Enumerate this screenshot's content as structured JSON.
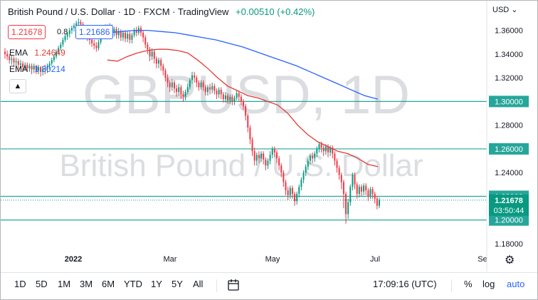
{
  "header": {
    "title": "British Pound / U.S. Dollar · 1D · FXCM · TradingView",
    "change": "+0.00510 (+0.42%)",
    "bid": "1.21678",
    "spread": "0.8",
    "ask": "1.21686",
    "currency_menu": "USD"
  },
  "indicators": [
    {
      "label": "EMA",
      "value": "1.24649",
      "color": "#e53935"
    },
    {
      "label": "EMA",
      "value": "1.30214",
      "color": "#2962ff"
    }
  ],
  "watermark": {
    "symbol": "GBPUSD, 1D",
    "description": "British Pound / U.S. Dollar"
  },
  "chart_data": {
    "type": "candlestick",
    "y_ticks": [
      1.36,
      1.34,
      1.32,
      1.3,
      1.28,
      1.26,
      1.24,
      1.22,
      1.2,
      1.18
    ],
    "ylim": [
      1.177,
      1.385
    ],
    "x_ticks": [
      "2022",
      "Mar",
      "May",
      "Jul",
      "Se"
    ],
    "horizontal_levels": [
      1.3,
      1.26,
      1.22,
      1.2
    ],
    "current_price": "1.21678",
    "countdown": "03:50:44",
    "ema_red": [
      1.335,
      1.334,
      1.338,
      1.341,
      1.343,
      1.344,
      1.344,
      1.343,
      1.341,
      1.335,
      1.328,
      1.32,
      1.313,
      1.309,
      1.305,
      1.303,
      1.3,
      1.297,
      1.29,
      1.28,
      1.272,
      1.266,
      1.262,
      1.258,
      1.256,
      1.252,
      1.247,
      1.245
    ],
    "ema_blue": [
      1.358,
      1.359,
      1.36,
      1.36,
      1.359,
      1.358,
      1.356,
      1.354,
      1.352,
      1.349,
      1.346,
      1.342,
      1.338,
      1.334,
      1.33,
      1.325,
      1.32,
      1.315,
      1.31,
      1.305,
      1.302
    ],
    "candles": [
      [
        1.342,
        1.34,
        1.345,
        1.336
      ],
      [
        1.34,
        1.338,
        1.343,
        1.335
      ],
      [
        1.338,
        1.335,
        1.34,
        1.332
      ],
      [
        1.335,
        1.336,
        1.339,
        1.331
      ],
      [
        1.336,
        1.333,
        1.338,
        1.329
      ],
      [
        1.333,
        1.334,
        1.337,
        1.33
      ],
      [
        1.334,
        1.331,
        1.336,
        1.327
      ],
      [
        1.331,
        1.332,
        1.335,
        1.328
      ],
      [
        1.332,
        1.329,
        1.334,
        1.325
      ],
      [
        1.329,
        1.331,
        1.333,
        1.326
      ],
      [
        1.331,
        1.328,
        1.333,
        1.325
      ],
      [
        1.328,
        1.33,
        1.332,
        1.325
      ],
      [
        1.33,
        1.327,
        1.332,
        1.323
      ],
      [
        1.327,
        1.33,
        1.332,
        1.324
      ],
      [
        1.33,
        1.326,
        1.331,
        1.323
      ],
      [
        1.326,
        1.329,
        1.331,
        1.323
      ],
      [
        1.329,
        1.325,
        1.33,
        1.321
      ],
      [
        1.325,
        1.328,
        1.33,
        1.322
      ],
      [
        1.328,
        1.327,
        1.331,
        1.323
      ],
      [
        1.327,
        1.33,
        1.332,
        1.324
      ],
      [
        1.33,
        1.332,
        1.334,
        1.327
      ],
      [
        1.332,
        1.335,
        1.337,
        1.33
      ],
      [
        1.335,
        1.338,
        1.34,
        1.333
      ],
      [
        1.338,
        1.342,
        1.344,
        1.336
      ],
      [
        1.342,
        1.345,
        1.347,
        1.34
      ],
      [
        1.345,
        1.348,
        1.35,
        1.343
      ],
      [
        1.348,
        1.352,
        1.354,
        1.346
      ],
      [
        1.352,
        1.355,
        1.357,
        1.35
      ],
      [
        1.355,
        1.357,
        1.359,
        1.352
      ],
      [
        1.357,
        1.36,
        1.362,
        1.354
      ],
      [
        1.36,
        1.362,
        1.364,
        1.357
      ],
      [
        1.362,
        1.364,
        1.366,
        1.359
      ],
      [
        1.364,
        1.366,
        1.368,
        1.361
      ],
      [
        1.366,
        1.367,
        1.37,
        1.362
      ],
      [
        1.367,
        1.365,
        1.369,
        1.361
      ],
      [
        1.365,
        1.362,
        1.367,
        1.358
      ],
      [
        1.362,
        1.358,
        1.364,
        1.354
      ],
      [
        1.358,
        1.355,
        1.36,
        1.351
      ],
      [
        1.355,
        1.352,
        1.357,
        1.348
      ],
      [
        1.352,
        1.349,
        1.355,
        1.346
      ],
      [
        1.349,
        1.347,
        1.352,
        1.344
      ],
      [
        1.347,
        1.345,
        1.35,
        1.342
      ],
      [
        1.345,
        1.35,
        1.352,
        1.343
      ],
      [
        1.35,
        1.355,
        1.357,
        1.348
      ],
      [
        1.355,
        1.36,
        1.362,
        1.353
      ],
      [
        1.36,
        1.362,
        1.365,
        1.357
      ],
      [
        1.362,
        1.36,
        1.365,
        1.356
      ],
      [
        1.36,
        1.363,
        1.366,
        1.357
      ],
      [
        1.363,
        1.358,
        1.365,
        1.355
      ],
      [
        1.358,
        1.361,
        1.363,
        1.355
      ],
      [
        1.361,
        1.356,
        1.363,
        1.353
      ],
      [
        1.356,
        1.359,
        1.362,
        1.353
      ],
      [
        1.359,
        1.354,
        1.361,
        1.351
      ],
      [
        1.354,
        1.358,
        1.36,
        1.351
      ],
      [
        1.358,
        1.353,
        1.36,
        1.35
      ],
      [
        1.353,
        1.357,
        1.359,
        1.35
      ],
      [
        1.357,
        1.352,
        1.359,
        1.349
      ],
      [
        1.352,
        1.356,
        1.358,
        1.349
      ],
      [
        1.356,
        1.36,
        1.362,
        1.354
      ],
      [
        1.36,
        1.358,
        1.363,
        1.355
      ],
      [
        1.358,
        1.362,
        1.364,
        1.356
      ],
      [
        1.362,
        1.358,
        1.364,
        1.355
      ],
      [
        1.358,
        1.354,
        1.36,
        1.35
      ],
      [
        1.354,
        1.348,
        1.356,
        1.345
      ],
      [
        1.348,
        1.344,
        1.35,
        1.34
      ],
      [
        1.344,
        1.338,
        1.346,
        1.334
      ],
      [
        1.338,
        1.342,
        1.345,
        1.335
      ],
      [
        1.342,
        1.336,
        1.344,
        1.332
      ],
      [
        1.336,
        1.332,
        1.338,
        1.328
      ],
      [
        1.332,
        1.335,
        1.337,
        1.328
      ],
      [
        1.335,
        1.33,
        1.337,
        1.326
      ],
      [
        1.33,
        1.326,
        1.332,
        1.322
      ],
      [
        1.326,
        1.32,
        1.328,
        1.317
      ],
      [
        1.32,
        1.316,
        1.323,
        1.312
      ],
      [
        1.316,
        1.312,
        1.318,
        1.308
      ],
      [
        1.312,
        1.316,
        1.319,
        1.309
      ],
      [
        1.316,
        1.311,
        1.318,
        1.307
      ],
      [
        1.311,
        1.308,
        1.314,
        1.304
      ],
      [
        1.308,
        1.312,
        1.315,
        1.305
      ],
      [
        1.312,
        1.306,
        1.314,
        1.302
      ],
      [
        1.306,
        1.304,
        1.309,
        1.3
      ],
      [
        1.304,
        1.308,
        1.31,
        1.301
      ],
      [
        1.308,
        1.312,
        1.315,
        1.306
      ],
      [
        1.312,
        1.318,
        1.32,
        1.31
      ],
      [
        1.318,
        1.322,
        1.325,
        1.315
      ],
      [
        1.322,
        1.32,
        1.325,
        1.316
      ],
      [
        1.32,
        1.316,
        1.322,
        1.312
      ],
      [
        1.316,
        1.312,
        1.318,
        1.309
      ],
      [
        1.312,
        1.316,
        1.318,
        1.31
      ],
      [
        1.316,
        1.312,
        1.318,
        1.309
      ],
      [
        1.312,
        1.308,
        1.314,
        1.305
      ],
      [
        1.308,
        1.312,
        1.314,
        1.305
      ],
      [
        1.312,
        1.31,
        1.315,
        1.306
      ],
      [
        1.31,
        1.313,
        1.316,
        1.307
      ],
      [
        1.313,
        1.309,
        1.315,
        1.306
      ],
      [
        1.309,
        1.306,
        1.311,
        1.302
      ],
      [
        1.306,
        1.31,
        1.312,
        1.303
      ],
      [
        1.31,
        1.306,
        1.312,
        1.302
      ],
      [
        1.306,
        1.302,
        1.308,
        1.299
      ],
      [
        1.302,
        1.305,
        1.308,
        1.299
      ],
      [
        1.305,
        1.301,
        1.307,
        1.298
      ],
      [
        1.301,
        1.304,
        1.306,
        1.298
      ],
      [
        1.304,
        1.3,
        1.306,
        1.297
      ],
      [
        1.3,
        1.303,
        1.305,
        1.297
      ],
      [
        1.303,
        1.307,
        1.309,
        1.301
      ],
      [
        1.307,
        1.304,
        1.309,
        1.3
      ],
      [
        1.304,
        1.3,
        1.306,
        1.297
      ],
      [
        1.3,
        1.296,
        1.302,
        1.293
      ],
      [
        1.296,
        1.288,
        1.298,
        1.284
      ],
      [
        1.288,
        1.278,
        1.29,
        1.274
      ],
      [
        1.278,
        1.268,
        1.28,
        1.264
      ],
      [
        1.268,
        1.258,
        1.27,
        1.254
      ],
      [
        1.258,
        1.25,
        1.261,
        1.246
      ],
      [
        1.25,
        1.255,
        1.257,
        1.246
      ],
      [
        1.255,
        1.252,
        1.258,
        1.248
      ],
      [
        1.252,
        1.256,
        1.258,
        1.249
      ],
      [
        1.256,
        1.251,
        1.258,
        1.247
      ],
      [
        1.251,
        1.246,
        1.253,
        1.242
      ],
      [
        1.246,
        1.25,
        1.252,
        1.243
      ],
      [
        1.25,
        1.255,
        1.258,
        1.247
      ],
      [
        1.255,
        1.26,
        1.262,
        1.252
      ],
      [
        1.26,
        1.257,
        1.262,
        1.253
      ],
      [
        1.257,
        1.252,
        1.259,
        1.248
      ],
      [
        1.252,
        1.246,
        1.254,
        1.242
      ],
      [
        1.246,
        1.24,
        1.248,
        1.236
      ],
      [
        1.24,
        1.232,
        1.242,
        1.228
      ],
      [
        1.232,
        1.225,
        1.234,
        1.221
      ],
      [
        1.225,
        1.221,
        1.228,
        1.217
      ],
      [
        1.221,
        1.227,
        1.229,
        1.218
      ],
      [
        1.227,
        1.222,
        1.229,
        1.218
      ],
      [
        1.222,
        1.216,
        1.224,
        1.212
      ],
      [
        1.216,
        1.222,
        1.224,
        1.213
      ],
      [
        1.222,
        1.228,
        1.23,
        1.219
      ],
      [
        1.228,
        1.234,
        1.236,
        1.225
      ],
      [
        1.234,
        1.24,
        1.242,
        1.231
      ],
      [
        1.24,
        1.245,
        1.247,
        1.237
      ],
      [
        1.245,
        1.25,
        1.252,
        1.242
      ],
      [
        1.25,
        1.254,
        1.256,
        1.247
      ],
      [
        1.254,
        1.252,
        1.257,
        1.248
      ],
      [
        1.252,
        1.256,
        1.258,
        1.249
      ],
      [
        1.256,
        1.26,
        1.262,
        1.253
      ],
      [
        1.26,
        1.264,
        1.266,
        1.257
      ],
      [
        1.264,
        1.261,
        1.266,
        1.257
      ],
      [
        1.261,
        1.258,
        1.263,
        1.254
      ],
      [
        1.258,
        1.262,
        1.264,
        1.255
      ],
      [
        1.262,
        1.257,
        1.264,
        1.253
      ],
      [
        1.257,
        1.261,
        1.263,
        1.254
      ],
      [
        1.261,
        1.256,
        1.263,
        1.252
      ],
      [
        1.256,
        1.25,
        1.258,
        1.246
      ],
      [
        1.25,
        1.244,
        1.252,
        1.24
      ],
      [
        1.244,
        1.238,
        1.246,
        1.234
      ],
      [
        1.238,
        1.232,
        1.24,
        1.226
      ],
      [
        1.232,
        1.222,
        1.234,
        1.21
      ],
      [
        1.222,
        1.205,
        1.224,
        1.197
      ],
      [
        1.205,
        1.215,
        1.218,
        1.201
      ],
      [
        1.215,
        1.228,
        1.23,
        1.212
      ],
      [
        1.228,
        1.238,
        1.24,
        1.225
      ],
      [
        1.238,
        1.23,
        1.24,
        1.226
      ],
      [
        1.23,
        1.222,
        1.232,
        1.218
      ],
      [
        1.222,
        1.228,
        1.23,
        1.219
      ],
      [
        1.228,
        1.224,
        1.23,
        1.22
      ],
      [
        1.224,
        1.229,
        1.231,
        1.221
      ],
      [
        1.229,
        1.225,
        1.231,
        1.221
      ],
      [
        1.225,
        1.22,
        1.227,
        1.216
      ],
      [
        1.22,
        1.226,
        1.228,
        1.218
      ],
      [
        1.226,
        1.222,
        1.228,
        1.218
      ],
      [
        1.222,
        1.218,
        1.224,
        1.214
      ],
      [
        1.218,
        1.212,
        1.22,
        1.209
      ],
      [
        1.212,
        1.217,
        1.219,
        1.21
      ]
    ]
  },
  "timeframes": [
    "1D",
    "5D",
    "1M",
    "3M",
    "6M",
    "YTD",
    "1Y",
    "5Y",
    "All"
  ],
  "footer": {
    "clock": "17:09:16 (UTC)",
    "percent": "%",
    "log": "log",
    "auto": "auto"
  },
  "colors": {
    "up": "#089981",
    "down": "#f23645",
    "level": "#26a69a",
    "ema_red": "#e53935",
    "ema_blue": "#2962ff",
    "accent": "#2962ff"
  }
}
